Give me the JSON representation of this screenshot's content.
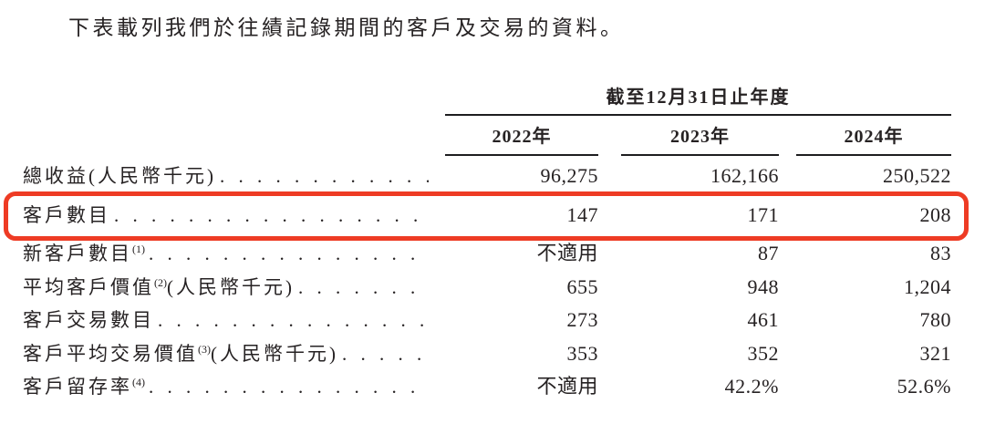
{
  "title": "下表載列我們於往績記錄期間的客戶及交易的資料。",
  "table": {
    "period_header": "截至12月31日止年度",
    "years": [
      "2022年",
      "2023年",
      "2024年"
    ],
    "rows": [
      {
        "label": "總收益(人民幣千元)",
        "sup": "",
        "label_rest": "",
        "values": [
          "96,275",
          "162,166",
          "250,522"
        ]
      },
      {
        "label": "客戶數目",
        "sup": "",
        "label_rest": "",
        "values": [
          "147",
          "171",
          "208"
        ]
      },
      {
        "label": "新客戶數目",
        "sup": "(1)",
        "label_rest": "",
        "values": [
          "不適用",
          "87",
          "83"
        ]
      },
      {
        "label": "平均客戶價值",
        "sup": "(2)",
        "label_rest": "(人民幣千元)",
        "values": [
          "655",
          "948",
          "1,204"
        ]
      },
      {
        "label": "客戶交易數目",
        "sup": "",
        "label_rest": "",
        "values": [
          "273",
          "461",
          "780"
        ]
      },
      {
        "label": "客戶平均交易價值",
        "sup": "(3)",
        "label_rest": "(人民幣千元)",
        "values": [
          "353",
          "352",
          "321"
        ]
      },
      {
        "label": "客戶留存率",
        "sup": "(4)",
        "label_rest": "",
        "values": [
          "不適用",
          "42.2%",
          "52.6%"
        ]
      }
    ]
  },
  "highlight": {
    "highlighted_row_label": "客戶數目",
    "color": "#ee3b24"
  },
  "colors": {
    "text": "#262223",
    "rule": "#1d1d1f"
  }
}
